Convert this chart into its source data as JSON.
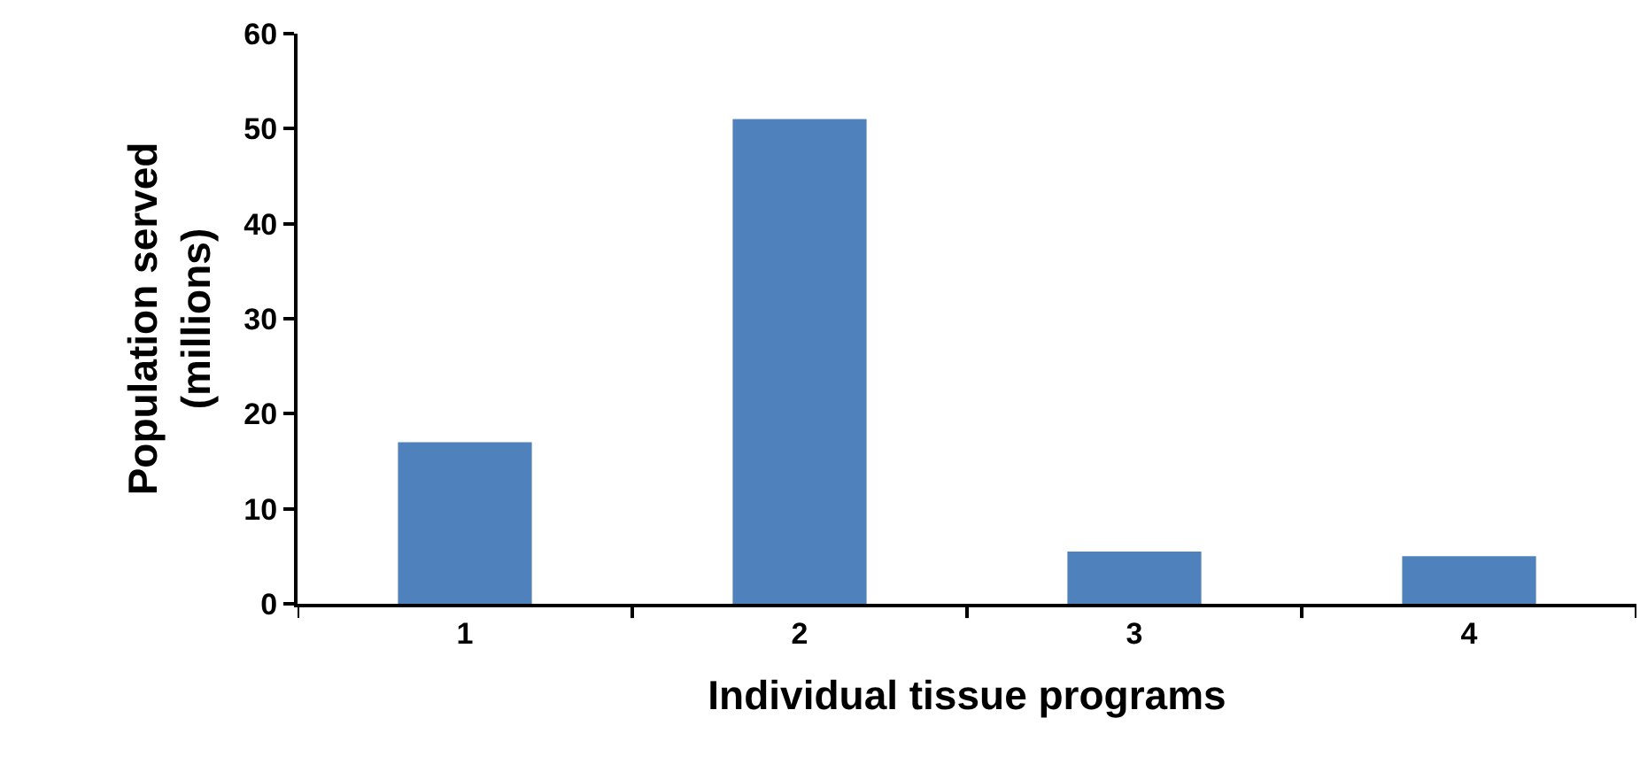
{
  "chart_data": {
    "type": "bar",
    "xlabel": "Individual tissue programs",
    "ylabel": "Population served\n(millions)",
    "categories": [
      "1",
      "2",
      "3",
      "4"
    ],
    "values": [
      17,
      51,
      5.5,
      5
    ],
    "color": "#4f81bd",
    "ylim": [
      0,
      60
    ],
    "yticks": [
      0,
      10,
      20,
      30,
      40,
      50,
      60
    ],
    "grid": false
  }
}
